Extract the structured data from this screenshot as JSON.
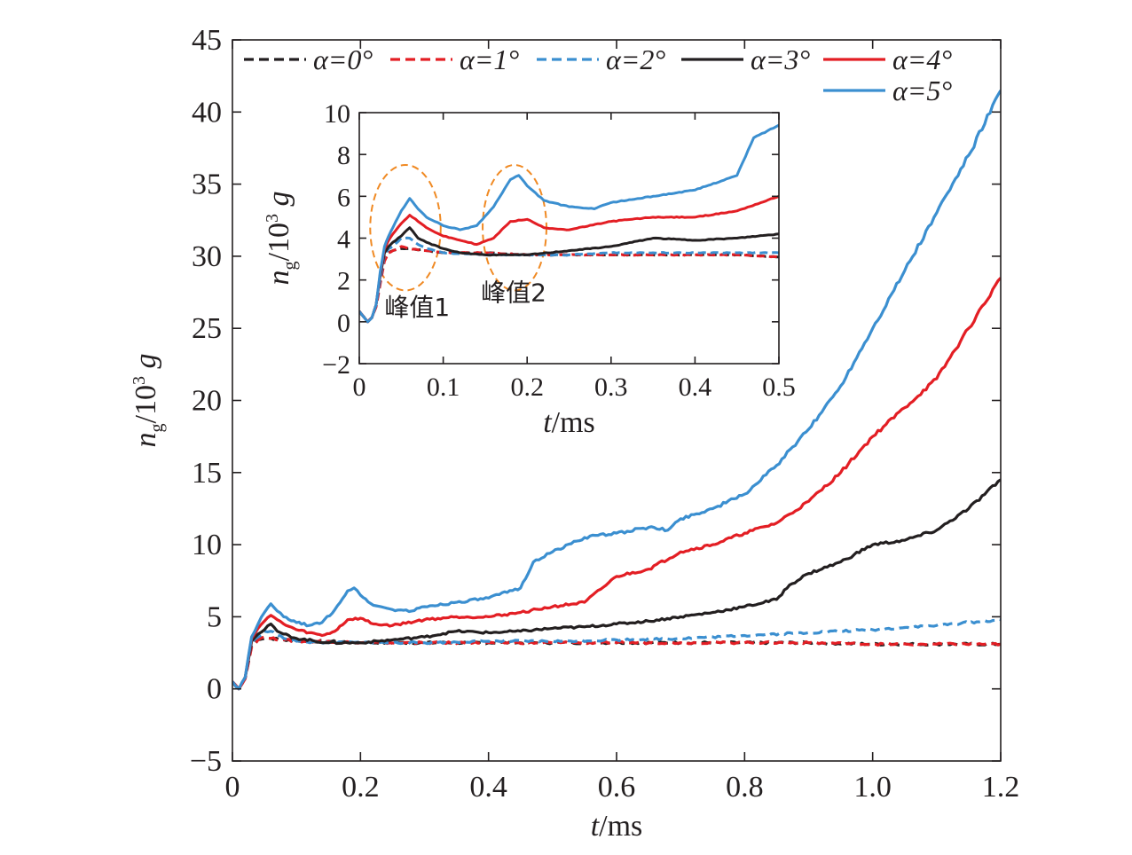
{
  "chart_data": [
    {
      "type": "line",
      "panel": "main",
      "xlabel": {
        "var": "t",
        "unit": "/ms"
      },
      "ylabel": {
        "var": "n",
        "sub": "g",
        "mid": "/10",
        "sup": "3",
        "tail": " g"
      },
      "xlim": [
        0,
        1.2
      ],
      "ylim": [
        -5,
        45
      ],
      "xticks": [
        0,
        0.2,
        0.4,
        0.6,
        0.8,
        1.0,
        1.2
      ],
      "xtick_labels": [
        "0",
        "0.2",
        "0.4",
        "0.6",
        "0.8",
        "1.0",
        "1.2"
      ],
      "yticks": [
        -5,
        0,
        5,
        10,
        15,
        20,
        25,
        30,
        35,
        40,
        45
      ],
      "ytick_labels": [
        "−5",
        "0",
        "5",
        "10",
        "15",
        "20",
        "25",
        "30",
        "35",
        "40",
        "45"
      ],
      "grid": false,
      "legend_placement": "top",
      "series": [
        {
          "name": "α=0°",
          "color": "#231f20",
          "style": "dashed",
          "x": [
            0,
            0.01,
            0.02,
            0.03,
            0.04,
            0.05,
            0.06,
            0.08,
            0.1,
            0.15,
            0.2,
            0.3,
            0.4,
            0.5,
            0.6,
            0.7,
            0.8,
            0.9,
            1.0,
            1.1,
            1.2
          ],
          "y": [
            0.5,
            0,
            0.8,
            3.0,
            3.4,
            3.5,
            3.5,
            3.4,
            3.3,
            3.3,
            3.2,
            3.2,
            3.2,
            3.2,
            3.2,
            3.2,
            3.2,
            3.2,
            3.1,
            3.1,
            3.1
          ]
        },
        {
          "name": "α=1°",
          "color": "#e31e24",
          "style": "dashed",
          "x": [
            0,
            0.01,
            0.02,
            0.03,
            0.04,
            0.05,
            0.06,
            0.08,
            0.1,
            0.15,
            0.2,
            0.3,
            0.4,
            0.5,
            0.6,
            0.7,
            0.8,
            0.9,
            1.0,
            1.1,
            1.2
          ],
          "y": [
            0.5,
            0,
            0.7,
            2.9,
            3.4,
            3.6,
            3.5,
            3.4,
            3.3,
            3.3,
            3.2,
            3.2,
            3.2,
            3.2,
            3.2,
            3.2,
            3.2,
            3.2,
            3.1,
            3.1,
            3.1
          ]
        },
        {
          "name": "α=2°",
          "color": "#3b8fd0",
          "style": "dashed",
          "x": [
            0,
            0.01,
            0.02,
            0.03,
            0.04,
            0.05,
            0.06,
            0.08,
            0.1,
            0.15,
            0.2,
            0.3,
            0.4,
            0.5,
            0.6,
            0.7,
            0.8,
            0.9,
            1.0,
            1.1,
            1.2
          ],
          "y": [
            0.5,
            0,
            0.8,
            3.2,
            3.6,
            4.0,
            4.0,
            3.5,
            3.3,
            3.2,
            3.2,
            3.2,
            3.3,
            3.3,
            3.4,
            3.5,
            3.7,
            3.9,
            4.1,
            4.4,
            4.8
          ]
        },
        {
          "name": "α=3°",
          "color": "#231f20",
          "style": "solid",
          "x": [
            0,
            0.01,
            0.02,
            0.03,
            0.04,
            0.05,
            0.06,
            0.07,
            0.08,
            0.1,
            0.15,
            0.2,
            0.25,
            0.3,
            0.35,
            0.4,
            0.45,
            0.5,
            0.55,
            0.6,
            0.65,
            0.7,
            0.75,
            0.8,
            0.85,
            0.87,
            0.9,
            0.95,
            1.0,
            1.05,
            1.1,
            1.15,
            1.2
          ],
          "y": [
            0.5,
            0,
            0.8,
            3.3,
            3.8,
            4.1,
            4.5,
            4.0,
            3.8,
            3.5,
            3.2,
            3.2,
            3.4,
            3.6,
            4.0,
            3.9,
            4.0,
            4.2,
            4.3,
            4.5,
            4.7,
            5.0,
            5.3,
            5.7,
            6.2,
            7.2,
            8.0,
            8.8,
            10.0,
            10.3,
            11.0,
            12.5,
            14.5
          ]
        },
        {
          "name": "α=4°",
          "color": "#e31e24",
          "style": "solid",
          "x": [
            0,
            0.01,
            0.02,
            0.03,
            0.04,
            0.05,
            0.06,
            0.07,
            0.08,
            0.1,
            0.12,
            0.14,
            0.16,
            0.18,
            0.2,
            0.22,
            0.25,
            0.3,
            0.35,
            0.4,
            0.45,
            0.5,
            0.55,
            0.6,
            0.65,
            0.7,
            0.75,
            0.8,
            0.85,
            0.9,
            0.95,
            1.0,
            1.05,
            1.1,
            1.15,
            1.2
          ],
          "y": [
            0.5,
            0,
            0.8,
            3.5,
            4.2,
            4.7,
            5.1,
            4.8,
            4.5,
            4.1,
            3.9,
            3.7,
            4.0,
            4.8,
            4.9,
            4.5,
            4.4,
            4.8,
            5.0,
            5.0,
            5.3,
            5.7,
            6.0,
            7.8,
            8.3,
            9.5,
            10.0,
            10.8,
            11.5,
            13.0,
            15.0,
            17.5,
            19.5,
            21.5,
            25.0,
            28.5
          ]
        },
        {
          "name": "α=5°",
          "color": "#3b8fd0",
          "style": "solid",
          "x": [
            0,
            0.01,
            0.02,
            0.03,
            0.04,
            0.05,
            0.06,
            0.07,
            0.08,
            0.1,
            0.12,
            0.14,
            0.16,
            0.18,
            0.19,
            0.2,
            0.22,
            0.25,
            0.28,
            0.3,
            0.35,
            0.4,
            0.45,
            0.47,
            0.5,
            0.55,
            0.6,
            0.65,
            0.68,
            0.7,
            0.75,
            0.8,
            0.85,
            0.9,
            0.95,
            1.0,
            1.05,
            1.1,
            1.15,
            1.2
          ],
          "y": [
            0.5,
            0,
            0.8,
            3.6,
            4.5,
            5.3,
            5.9,
            5.4,
            5.0,
            4.6,
            4.4,
            4.6,
            5.5,
            6.8,
            7.0,
            6.5,
            5.8,
            5.5,
            5.4,
            5.7,
            6.0,
            6.3,
            7.0,
            8.8,
            9.5,
            10.5,
            10.8,
            11.2,
            11.0,
            11.8,
            12.5,
            13.5,
            15.5,
            18.0,
            21.0,
            25.0,
            29.0,
            33.0,
            37.0,
            41.5
          ]
        }
      ]
    },
    {
      "type": "line",
      "panel": "inset",
      "xlabel": {
        "var": "t",
        "unit": "/ms"
      },
      "ylabel": {
        "var": "n",
        "sub": "g",
        "mid": "/10",
        "sup": "3",
        "tail": " g"
      },
      "xlim": [
        0,
        0.5
      ],
      "ylim": [
        -2,
        10
      ],
      "xticks": [
        0,
        0.1,
        0.2,
        0.3,
        0.4,
        0.5
      ],
      "xtick_labels": [
        "0",
        "0.1",
        "0.2",
        "0.3",
        "0.4",
        "0.5"
      ],
      "yticks": [
        -2,
        0,
        2,
        4,
        6,
        8,
        10
      ],
      "ytick_labels": [
        "−2",
        "0",
        "2",
        "4",
        "6",
        "8",
        "10"
      ],
      "grid": false,
      "annotations": [
        {
          "text": "峰值1",
          "x": 0.03,
          "y": 0.3
        },
        {
          "text": "峰值2",
          "x": 0.145,
          "y": 1.0
        }
      ],
      "highlight_ellipses": [
        {
          "cx": 0.055,
          "cy": 4.5,
          "rx": 0.042,
          "ry": 3.0,
          "color": "#f08a24"
        },
        {
          "cx": 0.185,
          "cy": 4.5,
          "rx": 0.038,
          "ry": 3.0,
          "color": "#f08a24"
        }
      ],
      "series": [
        {
          "name": "α=0°",
          "color": "#231f20",
          "style": "dashed",
          "x": [
            0,
            0.01,
            0.015,
            0.02,
            0.025,
            0.03,
            0.035,
            0.04,
            0.05,
            0.06,
            0.08,
            0.1,
            0.15,
            0.2,
            0.25,
            0.3,
            0.35,
            0.4,
            0.45,
            0.5
          ],
          "y": [
            0.5,
            0,
            0.2,
            0.8,
            2.0,
            3.0,
            3.3,
            3.4,
            3.5,
            3.5,
            3.4,
            3.3,
            3.3,
            3.2,
            3.2,
            3.2,
            3.2,
            3.2,
            3.2,
            3.1
          ]
        },
        {
          "name": "α=1°",
          "color": "#e31e24",
          "style": "dashed",
          "x": [
            0,
            0.01,
            0.015,
            0.02,
            0.025,
            0.03,
            0.035,
            0.04,
            0.05,
            0.06,
            0.08,
            0.1,
            0.15,
            0.2,
            0.25,
            0.3,
            0.35,
            0.4,
            0.45,
            0.5
          ],
          "y": [
            0.5,
            0,
            0.2,
            0.7,
            1.8,
            2.9,
            3.3,
            3.4,
            3.6,
            3.5,
            3.4,
            3.3,
            3.3,
            3.2,
            3.2,
            3.2,
            3.2,
            3.2,
            3.2,
            3.1
          ]
        },
        {
          "name": "α=2°",
          "color": "#3b8fd0",
          "style": "dashed",
          "x": [
            0,
            0.01,
            0.015,
            0.02,
            0.025,
            0.03,
            0.035,
            0.04,
            0.05,
            0.06,
            0.07,
            0.08,
            0.1,
            0.15,
            0.2,
            0.25,
            0.3,
            0.35,
            0.4,
            0.45,
            0.5
          ],
          "y": [
            0.5,
            0,
            0.2,
            0.8,
            2.0,
            3.2,
            3.5,
            3.6,
            4.0,
            4.0,
            3.7,
            3.5,
            3.3,
            3.2,
            3.2,
            3.2,
            3.3,
            3.3,
            3.3,
            3.3,
            3.3
          ]
        },
        {
          "name": "α=3°",
          "color": "#231f20",
          "style": "solid",
          "x": [
            0,
            0.01,
            0.015,
            0.02,
            0.025,
            0.03,
            0.035,
            0.04,
            0.05,
            0.06,
            0.07,
            0.08,
            0.1,
            0.12,
            0.15,
            0.18,
            0.2,
            0.25,
            0.3,
            0.35,
            0.4,
            0.45,
            0.5
          ],
          "y": [
            0.5,
            0,
            0.2,
            0.8,
            2.2,
            3.3,
            3.6,
            3.8,
            4.1,
            4.5,
            4.0,
            3.8,
            3.5,
            3.3,
            3.2,
            3.2,
            3.2,
            3.4,
            3.6,
            4.0,
            3.9,
            4.0,
            4.2
          ]
        },
        {
          "name": "α=4°",
          "color": "#e31e24",
          "style": "solid",
          "x": [
            0,
            0.01,
            0.015,
            0.02,
            0.025,
            0.03,
            0.035,
            0.04,
            0.05,
            0.06,
            0.07,
            0.08,
            0.1,
            0.12,
            0.14,
            0.16,
            0.18,
            0.2,
            0.22,
            0.25,
            0.3,
            0.35,
            0.4,
            0.45,
            0.5
          ],
          "y": [
            0.5,
            0,
            0.2,
            0.8,
            2.3,
            3.5,
            3.9,
            4.2,
            4.7,
            5.1,
            4.8,
            4.5,
            4.1,
            3.9,
            3.7,
            4.0,
            4.8,
            4.9,
            4.5,
            4.4,
            4.8,
            5.0,
            5.0,
            5.3,
            6.0
          ]
        },
        {
          "name": "α=5°",
          "color": "#3b8fd0",
          "style": "solid",
          "x": [
            0,
            0.01,
            0.015,
            0.02,
            0.025,
            0.03,
            0.035,
            0.04,
            0.05,
            0.06,
            0.07,
            0.08,
            0.1,
            0.12,
            0.14,
            0.16,
            0.18,
            0.19,
            0.2,
            0.22,
            0.25,
            0.28,
            0.3,
            0.35,
            0.4,
            0.45,
            0.47,
            0.5
          ],
          "y": [
            0.5,
            0,
            0.2,
            0.8,
            2.4,
            3.6,
            4.1,
            4.5,
            5.3,
            5.9,
            5.4,
            5.0,
            4.6,
            4.4,
            4.6,
            5.5,
            6.8,
            7.0,
            6.5,
            5.8,
            5.5,
            5.4,
            5.7,
            6.0,
            6.3,
            7.0,
            8.8,
            9.4
          ]
        }
      ]
    }
  ]
}
